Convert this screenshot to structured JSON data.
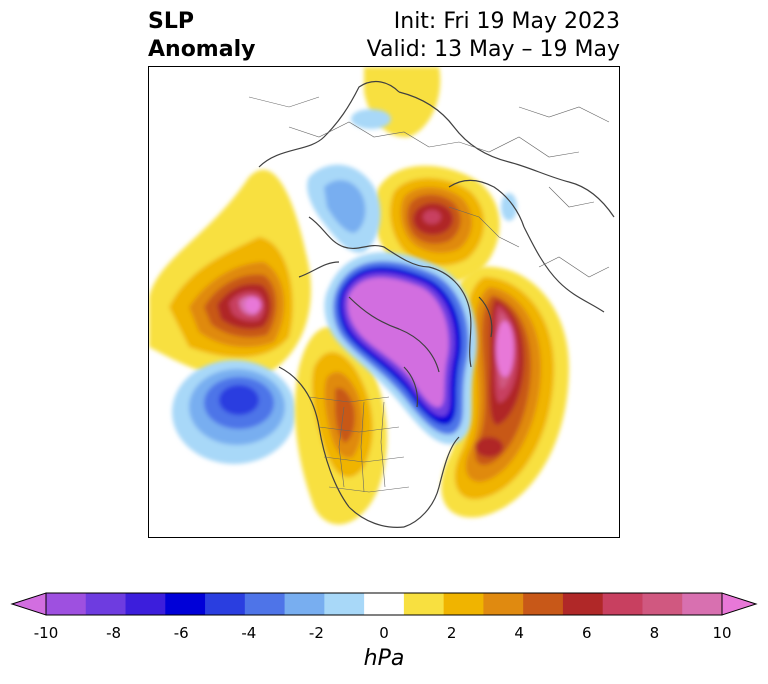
{
  "header": {
    "variable_line1": "SLP",
    "variable_line2": "Anomaly",
    "init": "Init: Fri 19 May 2023",
    "valid": "Valid: 13 May – 19 May"
  },
  "colorbar": {
    "unit_label": "hPa",
    "ticks": [
      "-10",
      "-8",
      "-6",
      "-4",
      "-2",
      "0",
      "2",
      "4",
      "6",
      "8",
      "10"
    ],
    "colors": [
      "#d26ee0",
      "#9e50e0",
      "#6e3ce0",
      "#3c1edc",
      "#0000d8",
      "#2a3ee0",
      "#4e74e8",
      "#78aef0",
      "#a8d8f8",
      "#ffffff",
      "#f8e040",
      "#f0b400",
      "#e08a10",
      "#c85818",
      "#b02828",
      "#c84060",
      "#d05880",
      "#d870b0",
      "#e878d8"
    ],
    "range": [
      -10,
      10
    ]
  },
  "map": {
    "projection": "north-polar-stereographic",
    "features": [
      "coastlines",
      "country-borders",
      "state-borders"
    ],
    "anomaly_centers": [
      {
        "name": "Negative anomaly over Arctic / Greenland",
        "sign": "negative"
      },
      {
        "name": "Negative anomaly over North Pacific",
        "sign": "negative"
      },
      {
        "name": "Positive anomaly over Aleutians / Alaska",
        "sign": "positive"
      },
      {
        "name": "Positive anomaly over Scandinavia / Eurasia",
        "sign": "positive"
      },
      {
        "name": "Positive anomaly over North Atlantic / Europe",
        "sign": "positive"
      },
      {
        "name": "Positive anomaly over Central North America",
        "sign": "positive"
      }
    ]
  }
}
